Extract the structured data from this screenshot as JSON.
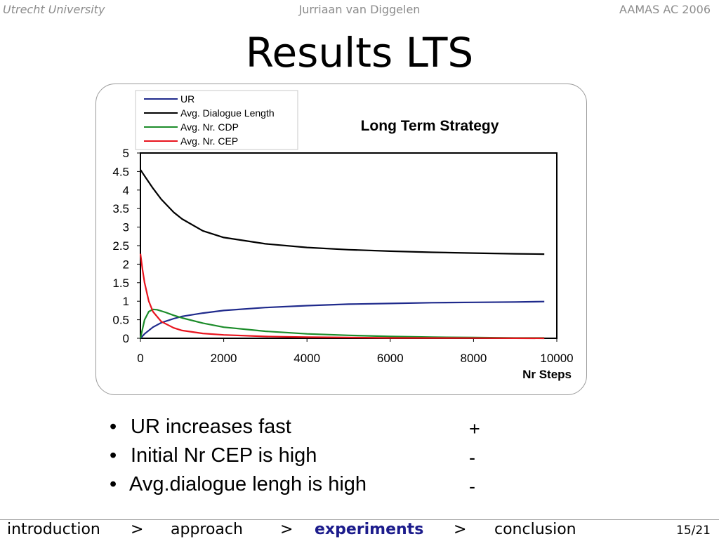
{
  "header": {
    "left": "Utrecht University",
    "center": "Jurriaan van Diggelen",
    "right": "AAMAS AC 2006"
  },
  "slide": {
    "title": "Results LTS"
  },
  "bullets": [
    {
      "text": "UR increases fast",
      "sign": "+"
    },
    {
      "text": "Initial Nr CEP is high",
      "sign": "-"
    },
    {
      "text": "Avg.dialogue lengh is high",
      "sign": "-"
    }
  ],
  "footer": {
    "nav": [
      {
        "label": "introduction",
        "current": false
      },
      {
        "label": "approach",
        "current": false
      },
      {
        "label": "experiments",
        "current": true
      },
      {
        "label": "conclusion",
        "current": false
      }
    ],
    "separator": ">",
    "page": "15/21"
  },
  "chart_data": {
    "type": "line",
    "title": "Long Term Strategy",
    "xlabel": "Nr Steps",
    "ylabel": "",
    "xlim": [
      0,
      10000
    ],
    "ylim": [
      0,
      5
    ],
    "x_ticks": [
      "0",
      "2000",
      "4000",
      "6000",
      "8000",
      "10000"
    ],
    "y_ticks": [
      "0",
      "0.5",
      "1",
      "1.5",
      "2",
      "2.5",
      "3",
      "3.5",
      "4",
      "4.5",
      "5"
    ],
    "grid": false,
    "legend_position": "top-left",
    "series": [
      {
        "name": "UR",
        "color": "#1f2a8c",
        "x": [
          0,
          100,
          300,
          500,
          800,
          1000,
          1500,
          2000,
          3000,
          4000,
          5000,
          6000,
          7000,
          8000,
          9000,
          9700
        ],
        "y": [
          0,
          0.12,
          0.3,
          0.42,
          0.53,
          0.59,
          0.68,
          0.75,
          0.83,
          0.88,
          0.92,
          0.94,
          0.96,
          0.97,
          0.98,
          0.99
        ]
      },
      {
        "name": "Avg. Dialogue Length",
        "color": "#000000",
        "x": [
          0,
          100,
          300,
          500,
          800,
          1000,
          1500,
          2000,
          3000,
          4000,
          5000,
          6000,
          7000,
          8000,
          9000,
          9700
        ],
        "y": [
          4.55,
          4.38,
          4.05,
          3.75,
          3.4,
          3.22,
          2.9,
          2.72,
          2.55,
          2.45,
          2.39,
          2.35,
          2.32,
          2.3,
          2.28,
          2.27
        ]
      },
      {
        "name": "Avg. Nr. CDP",
        "color": "#1c8c2a",
        "x": [
          0,
          100,
          200,
          300,
          400,
          600,
          800,
          1000,
          1500,
          2000,
          3000,
          4000,
          5000,
          6000,
          7000,
          8000,
          9000,
          9700
        ],
        "y": [
          0,
          0.5,
          0.72,
          0.78,
          0.77,
          0.7,
          0.62,
          0.55,
          0.41,
          0.3,
          0.19,
          0.12,
          0.08,
          0.05,
          0.03,
          0.02,
          0.01,
          0.01
        ]
      },
      {
        "name": "Avg. Nr. CEP",
        "color": "#e8141e",
        "x": [
          0,
          50,
          100,
          200,
          300,
          500,
          800,
          1000,
          1500,
          2000,
          3000,
          4000,
          5000,
          6000,
          8000,
          9700
        ],
        "y": [
          2.28,
          1.85,
          1.5,
          1.0,
          0.72,
          0.45,
          0.28,
          0.21,
          0.13,
          0.09,
          0.05,
          0.03,
          0.02,
          0.01,
          0.005,
          0
        ]
      }
    ]
  }
}
